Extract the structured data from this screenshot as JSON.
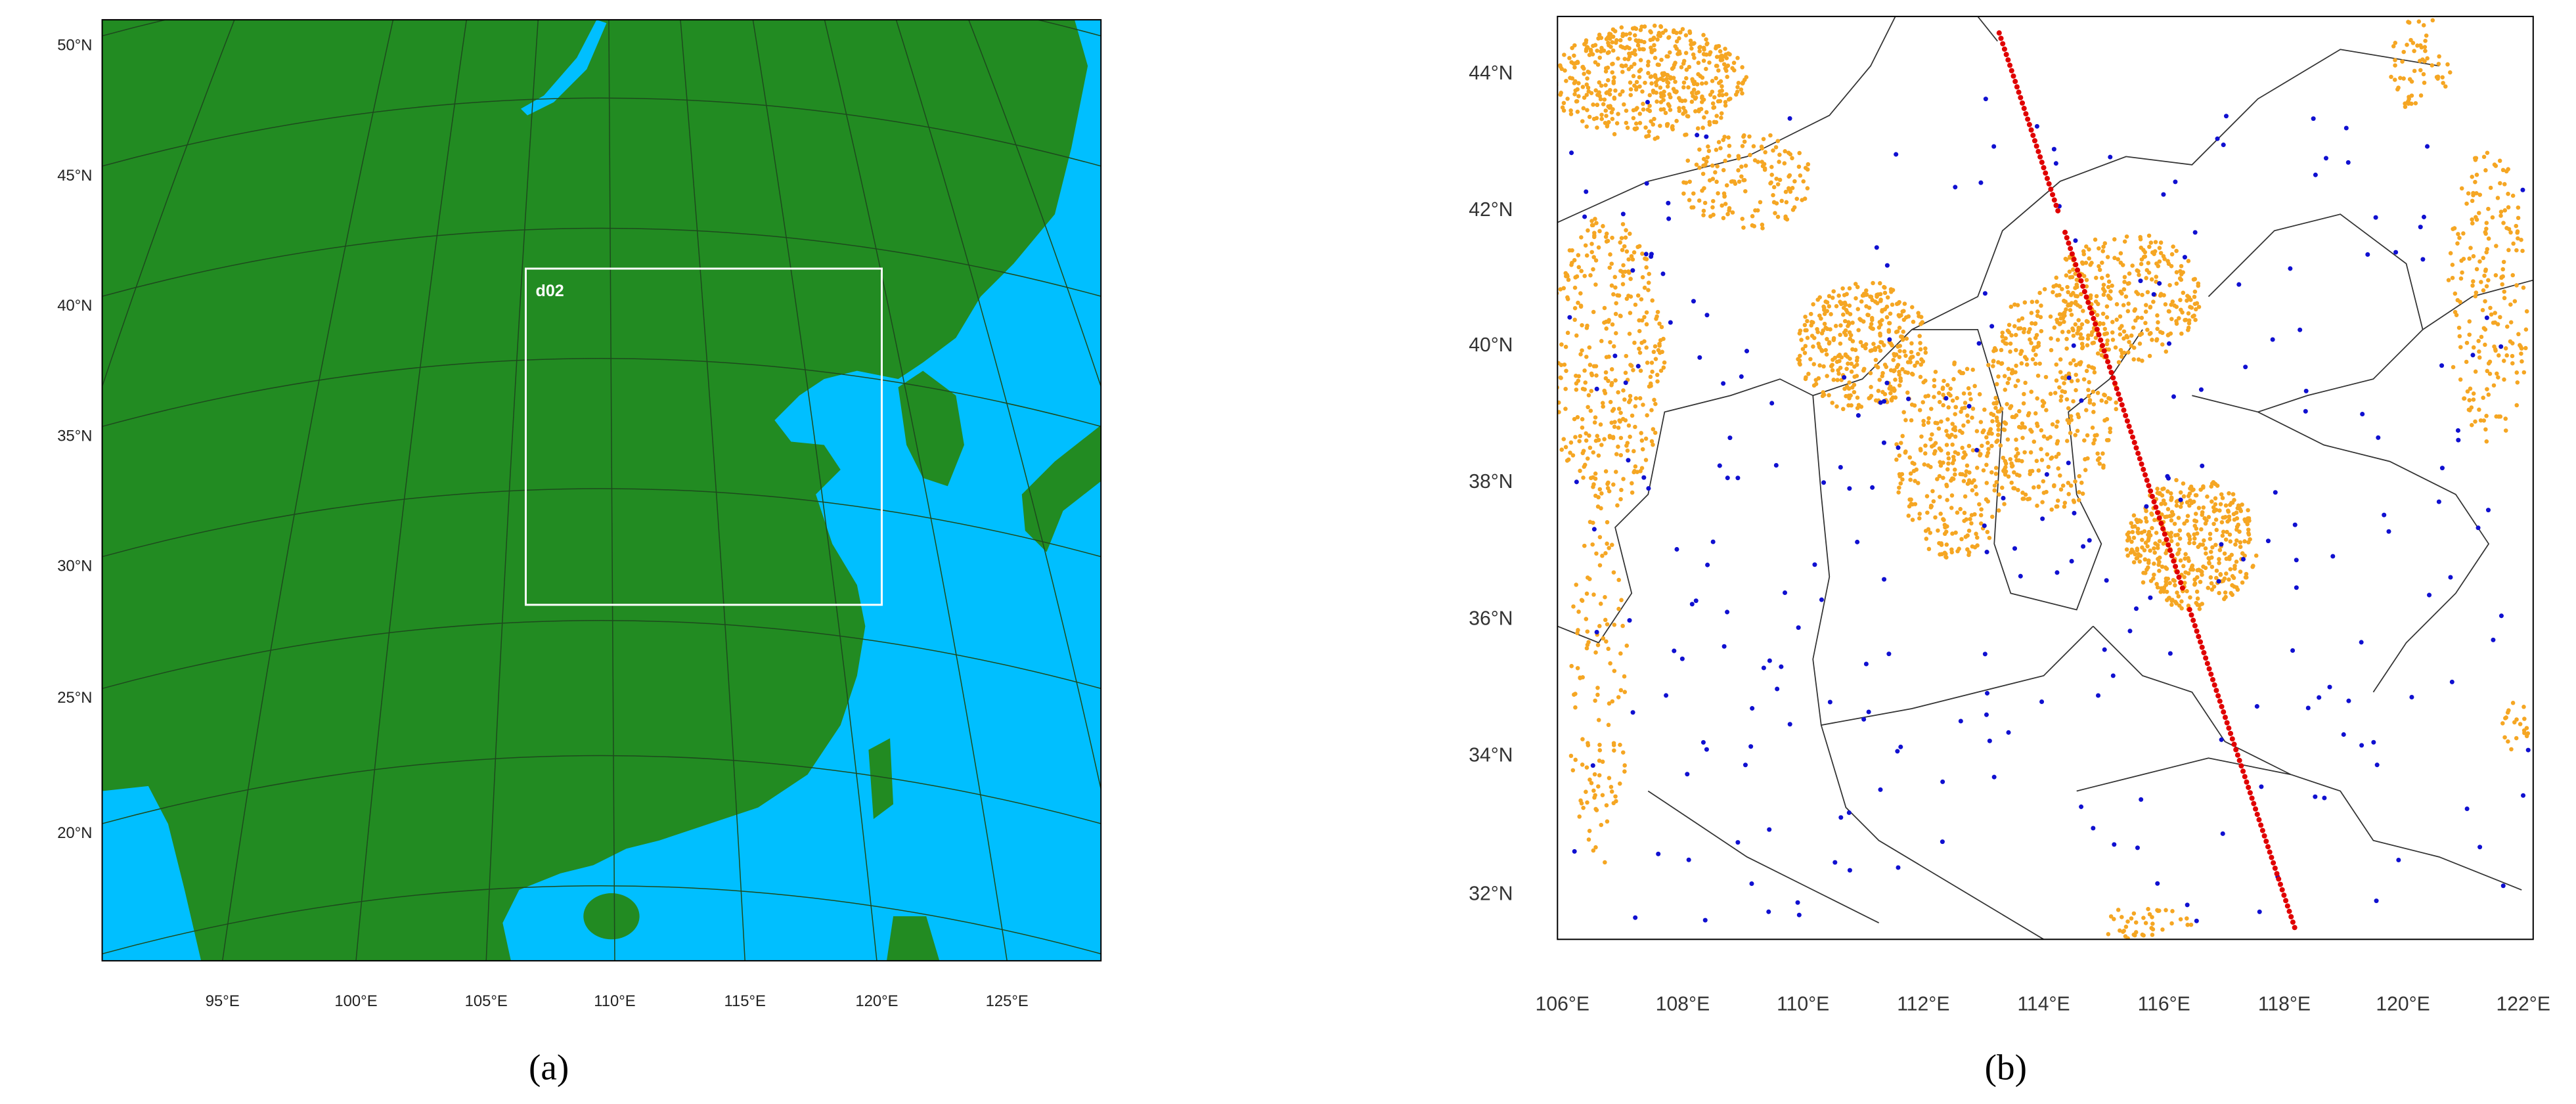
{
  "panel_a": {
    "lat_labels": [
      "50°N",
      "45°N",
      "40°N",
      "35°N",
      "30°N",
      "25°N",
      "20°N"
    ],
    "lon_labels": [
      "95°E",
      "100°E",
      "105°E",
      "110°E",
      "115°E",
      "120°E",
      "125°E"
    ],
    "domain_label": "d02",
    "caption": "(a)"
  },
  "panel_b": {
    "lat_labels": [
      "44°N",
      "42°N",
      "40°N",
      "38°N",
      "36°N",
      "34°N",
      "32°N"
    ],
    "lon_labels": [
      "106°E",
      "108°E",
      "110°E",
      "112°E",
      "114°E",
      "116°E",
      "118°E",
      "120°E",
      "122°E"
    ],
    "caption": "(b)"
  }
}
